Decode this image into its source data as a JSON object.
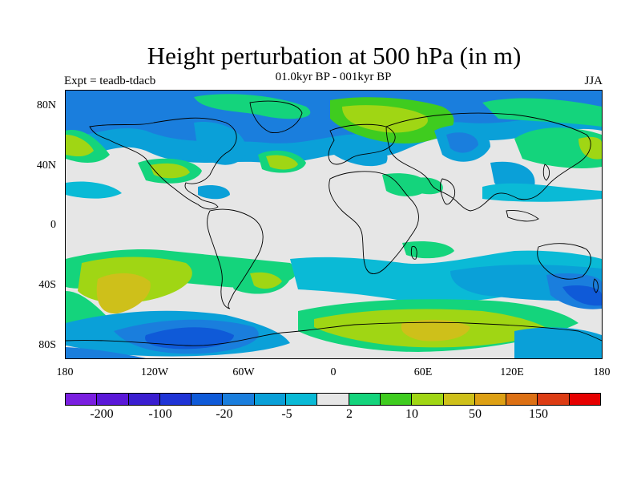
{
  "title": "Height perturbation at 500 hPa (in m)",
  "subtitle": "01.0kyr BP - 001kyr BP",
  "left_label": "Expt = teadb-tdacb",
  "right_label": "JJA",
  "axes": {
    "lat_ticks": [
      "80N",
      "40N",
      "0",
      "40S",
      "80S"
    ],
    "lon_ticks": [
      "180",
      "120W",
      "60W",
      "0",
      "60E",
      "120E",
      "180"
    ]
  },
  "colorbar": {
    "colors": [
      "#7a1fe0",
      "#5a18d8",
      "#3a1ed0",
      "#1f34d6",
      "#0f5ad8",
      "#1a7edd",
      "#0aa0d8",
      "#0abad6",
      "#e6e6e6",
      "#14d47c",
      "#3fcc1f",
      "#a0d614",
      "#cec01a",
      "#dda014",
      "#dc7014",
      "#dc3c14",
      "#e60000"
    ],
    "labels": [
      "-200",
      "-100",
      "-20",
      "-5",
      "2",
      "10",
      "50",
      "150"
    ]
  },
  "colors": {
    "background_field": "#e6e6e6",
    "coast": "#000000"
  }
}
